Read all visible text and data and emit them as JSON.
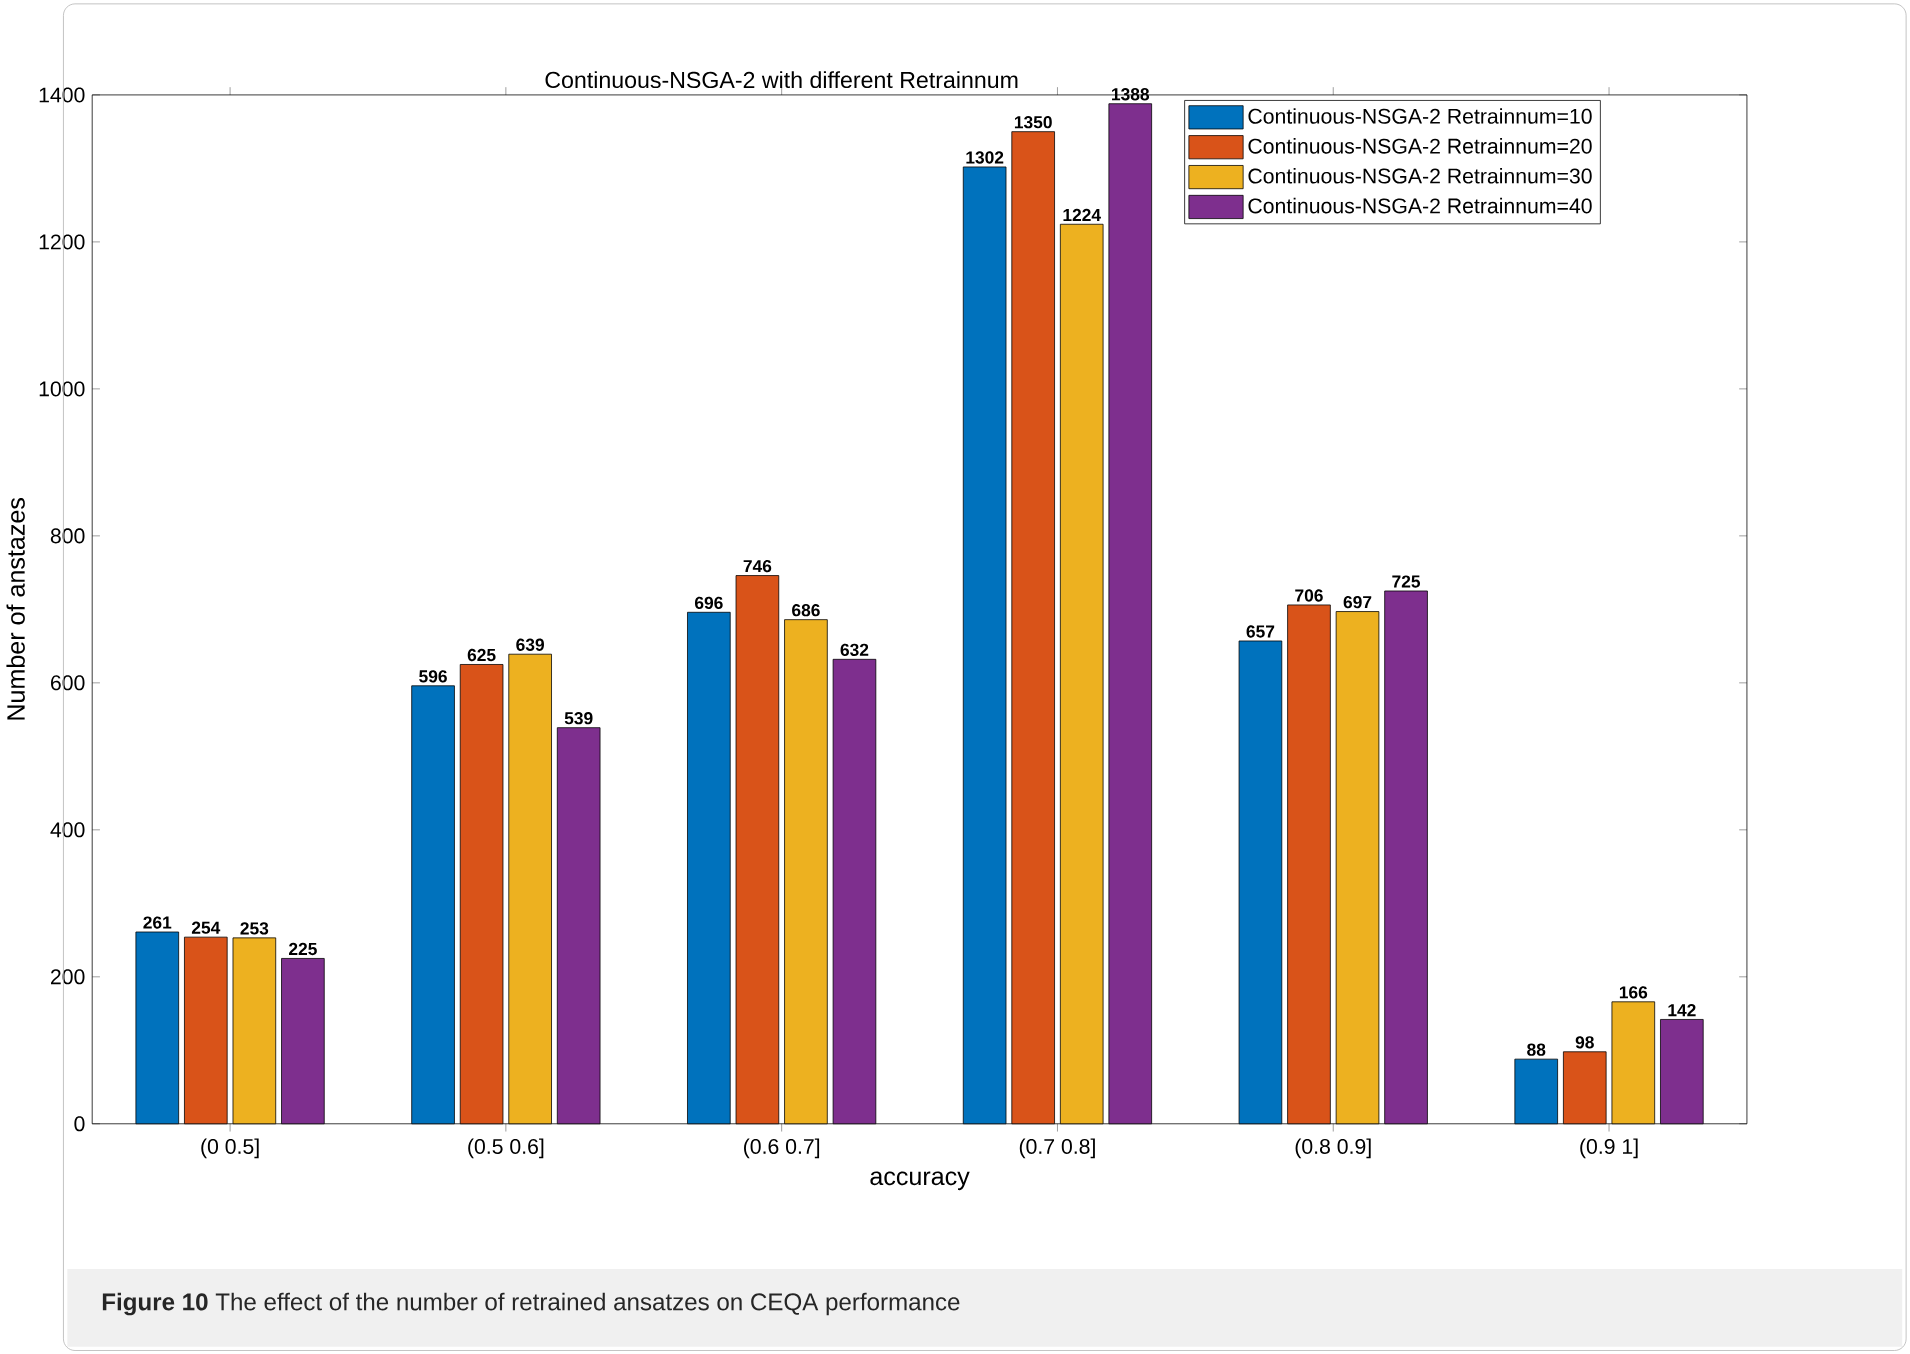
{
  "chart_data": {
    "type": "bar",
    "title": "Continuous-NSGA-2 with different Retrainnum",
    "xlabel": "accuracy",
    "ylabel": "Number of anstazes",
    "categories": [
      "(0 0.5]",
      "(0.5 0.6]",
      "(0.6 0.7]",
      "(0.7 0.8]",
      "(0.8 0.9]",
      "(0.9 1]"
    ],
    "series": [
      {
        "name": "Continuous-NSGA-2 Retrainnum=10",
        "color": "#0072bd",
        "values": [
          261,
          596,
          696,
          1302,
          657,
          88
        ]
      },
      {
        "name": "Continuous-NSGA-2 Retrainnum=20",
        "color": "#d95319",
        "values": [
          254,
          625,
          746,
          1350,
          706,
          98
        ]
      },
      {
        "name": "Continuous-NSGA-2 Retrainnum=30",
        "color": "#edb120",
        "values": [
          253,
          639,
          686,
          1224,
          697,
          166
        ]
      },
      {
        "name": "Continuous-NSGA-2 Retrainnum=40",
        "color": "#7e2f8e",
        "values": [
          225,
          539,
          632,
          1388,
          725,
          142
        ]
      }
    ],
    "ylim": [
      0,
      1400
    ],
    "yticks": [
      0,
      200,
      400,
      600,
      800,
      1000,
      1200,
      1400
    ],
    "grid": false,
    "legend": "top right",
    "data_labels": true,
    "annotations": [
      "**Figure 10** The effect of the number of retrained ansatzes on CEQA performance"
    ]
  }
}
